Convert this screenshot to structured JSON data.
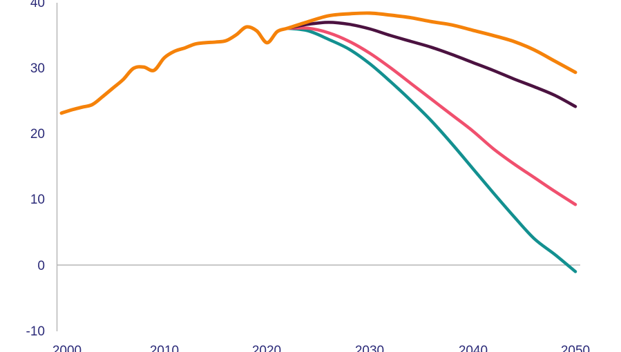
{
  "chart_data": {
    "type": "line",
    "title": "",
    "xlabel": "",
    "ylabel": "",
    "xlim": [
      2000,
      2050
    ],
    "ylim": [
      -10,
      40
    ],
    "x_ticks": [
      "2000",
      "2010",
      "2020",
      "2030",
      "2040",
      "2050"
    ],
    "y_ticks": [
      "40",
      "30",
      "20",
      "10",
      "0",
      "-10"
    ],
    "grid": false,
    "legend": "none",
    "series": [
      {
        "color": "#139090",
        "x": [
          2022,
          2024,
          2026,
          2028,
          2030,
          2032,
          2034,
          2036,
          2038,
          2040,
          2042,
          2044,
          2046,
          2048,
          2050
        ],
        "y": [
          36.0,
          35.6,
          34.3,
          32.8,
          30.6,
          27.9,
          25.0,
          21.9,
          18.4,
          14.7,
          11.0,
          7.4,
          4.0,
          1.6,
          -1.0
        ]
      },
      {
        "color": "#F0506E",
        "x": [
          2022,
          2024,
          2026,
          2028,
          2030,
          2032,
          2034,
          2036,
          2038,
          2040,
          2042,
          2044,
          2046,
          2048,
          2050
        ],
        "y": [
          36.0,
          36.0,
          35.3,
          34.0,
          32.2,
          30.0,
          27.6,
          25.2,
          22.8,
          20.4,
          17.7,
          15.4,
          13.3,
          11.2,
          9.2
        ]
      },
      {
        "color": "#4B1240",
        "x": [
          2022,
          2024,
          2026,
          2028,
          2030,
          2032,
          2034,
          2036,
          2038,
          2040,
          2042,
          2044,
          2046,
          2048,
          2050
        ],
        "y": [
          36.0,
          36.6,
          36.9,
          36.6,
          35.9,
          34.9,
          34.0,
          33.1,
          32.0,
          30.8,
          29.6,
          28.3,
          27.1,
          25.8,
          24.1
        ]
      },
      {
        "color": "#F5820A",
        "x": [
          2000,
          2001,
          2002,
          2003,
          2004,
          2005,
          2006,
          2007,
          2008,
          2009,
          2010,
          2011,
          2012,
          2013,
          2014,
          2015,
          2016,
          2017,
          2018,
          2019,
          2020,
          2021,
          2022,
          2024,
          2026,
          2028,
          2030,
          2032,
          2034,
          2036,
          2038,
          2040,
          2042,
          2044,
          2046,
          2048,
          2050
        ],
        "y": [
          23.1,
          23.6,
          24.0,
          24.4,
          25.6,
          26.9,
          28.2,
          29.9,
          30.1,
          29.6,
          31.5,
          32.5,
          33.0,
          33.6,
          33.8,
          33.9,
          34.1,
          35.0,
          36.2,
          35.6,
          33.8,
          35.5,
          36.0,
          37.0,
          37.9,
          38.2,
          38.3,
          38.0,
          37.6,
          37.0,
          36.5,
          35.7,
          34.9,
          34.0,
          32.7,
          31.0,
          29.3
        ]
      }
    ]
  }
}
